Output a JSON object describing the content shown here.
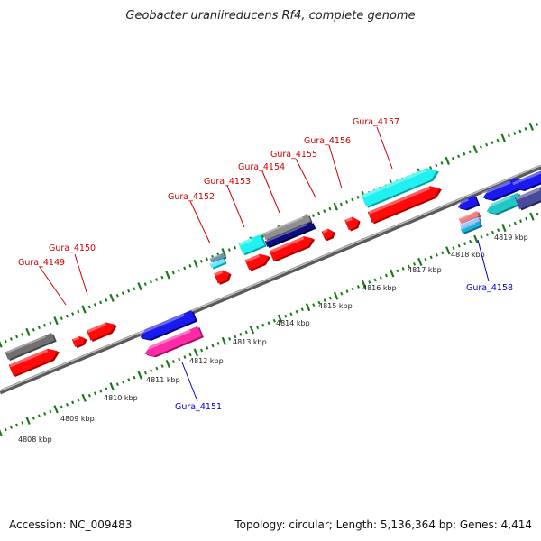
{
  "title": "Geobacter uraniireducens Rf4, complete genome",
  "footer": {
    "accession": "Accession: NC_009483",
    "stats": "Topology: circular; Length: 5,136,364 bp; Genes: 4,414"
  },
  "colors": {
    "forward_label": "#cc0000",
    "reverse_label": "#0000cc",
    "ticks": "#1a7a1a",
    "backbone": "#808080"
  },
  "kbp_ticks": [
    "4808 kbp",
    "4809 kbp",
    "4810 kbp",
    "4811 kbp",
    "4812 kbp",
    "4813 kbp",
    "4814 kbp",
    "4815 kbp",
    "4816 kbp",
    "4817 kbp",
    "4818 kbp",
    "4819 kbp"
  ],
  "gene_labels": [
    {
      "id": "Gura_4149",
      "strand": "forward"
    },
    {
      "id": "Gura_4150",
      "strand": "forward"
    },
    {
      "id": "Gura_4151",
      "strand": "reverse"
    },
    {
      "id": "Gura_4152",
      "strand": "forward"
    },
    {
      "id": "Gura_4153",
      "strand": "forward"
    },
    {
      "id": "Gura_4154",
      "strand": "forward"
    },
    {
      "id": "Gura_4155",
      "strand": "forward"
    },
    {
      "id": "Gura_4156",
      "strand": "forward"
    },
    {
      "id": "Gura_4157",
      "strand": "forward"
    },
    {
      "id": "Gura_4158",
      "strand": "reverse"
    }
  ]
}
